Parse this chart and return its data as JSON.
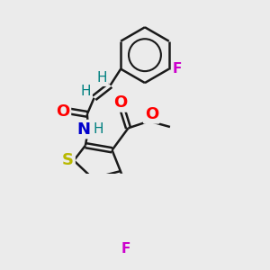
{
  "background_color": "#ebebeb",
  "bond_color": "#1a1a1a",
  "bond_width": 1.8,
  "figsize": [
    3.0,
    3.0
  ],
  "dpi": 100,
  "xlim": [
    0,
    300
  ],
  "ylim": [
    0,
    300
  ]
}
